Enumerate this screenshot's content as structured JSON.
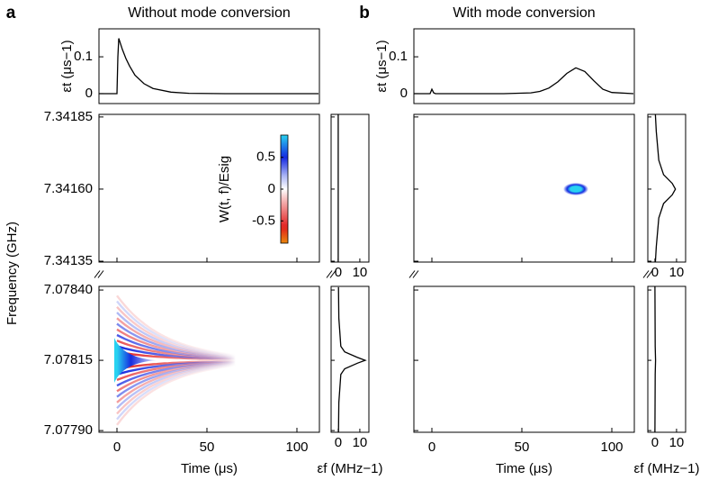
{
  "chart_data": [
    {
      "type": "line",
      "panel_label": "a",
      "title": "Without mode conversion",
      "ylabel": "εt (μs−1)",
      "x": [
        -10,
        0,
        0.5,
        1,
        2,
        3,
        5,
        7,
        10,
        15,
        20,
        30,
        40,
        60,
        80,
        100,
        112
      ],
      "values": [
        0,
        0,
        0.1,
        0.15,
        0.135,
        0.12,
        0.095,
        0.075,
        0.05,
        0.027,
        0.014,
        0.004,
        0.001,
        0,
        0,
        0,
        0
      ],
      "xlim": [
        -10,
        112.5
      ],
      "ylim": [
        -0.027,
        0.176
      ],
      "yticks": [
        0,
        0.1
      ],
      "color": "#000000"
    },
    {
      "type": "heatmap",
      "xlabel": "Time (μs)",
      "ylabel": "Frequency (GHz)",
      "xlim": [
        -10,
        112.5
      ],
      "xticks": [
        0,
        50,
        100
      ],
      "panels": [
        {
          "ylim": [
            7.341347,
            7.341859
          ],
          "yticks": [
            7.34185,
            {
              "value": 7.3416,
              "label": "7.34160"
            },
            7.34135
          ],
          "peaks": [],
          "ridges": []
        },
        {
          "ylim": [
            7.077894,
            7.078413
          ],
          "yticks": [
            {
              "value": 7.0784,
              "label": "7.07840"
            },
            7.07815,
            {
              "value": 7.0779,
              "label": "7.07790"
            }
          ],
          "peaks": [
            {
              "shape": "tail",
              "t": 0,
              "f": 7.07815,
              "value": 0.85,
              "t_width": 22,
              "f_width": 8e-05
            }
          ],
          "ridges": [
            {
              "f": 7.07818,
              "value": -0.6
            },
            {
              "f": 7.0782,
              "value": 0.5
            },
            {
              "f": 7.07822,
              "value": -0.45
            },
            {
              "f": 7.07824,
              "value": 0.4
            },
            {
              "f": 7.07826,
              "value": -0.35
            },
            {
              "f": 7.07828,
              "value": 0.3
            },
            {
              "f": 7.0783,
              "value": -0.25
            },
            {
              "f": 7.07832,
              "value": 0.2
            },
            {
              "f": 7.07834,
              "value": -0.15
            },
            {
              "f": 7.07836,
              "value": 0.12
            },
            {
              "f": 7.07838,
              "value": -0.1
            },
            {
              "f": 7.07812,
              "value": -0.6
            },
            {
              "f": 7.0781,
              "value": 0.5
            },
            {
              "f": 7.07808,
              "value": -0.45
            },
            {
              "f": 7.07806,
              "value": 0.4
            },
            {
              "f": 7.07804,
              "value": -0.35
            },
            {
              "f": 7.07802,
              "value": 0.3
            },
            {
              "f": 7.078,
              "value": -0.25
            },
            {
              "f": 7.07798,
              "value": 0.2
            },
            {
              "f": 7.07796,
              "value": -0.15
            },
            {
              "f": 7.07794,
              "value": 0.12
            },
            {
              "f": 7.07792,
              "value": -0.1
            }
          ]
        }
      ],
      "colorbar": {
        "label": "W(t, f)/Esig",
        "clim": [
          -0.85,
          0.85
        ],
        "ticks": [
          0.5,
          0,
          -0.5
        ]
      }
    },
    {
      "type": "marginal",
      "xlabel": "εf (MHz−1)",
      "xlim": [
        -3.3,
        14.2
      ],
      "xticks": [
        0,
        10
      ],
      "color": "#000000",
      "series": [
        {
          "f": [
            7.341347,
            7.341859
          ],
          "values": [
            0,
            0
          ]
        },
        {
          "f": [
            7.07789,
            7.078,
            7.0781,
            7.07812,
            7.07814,
            7.07815,
            7.07816,
            7.07818,
            7.0782,
            7.0783,
            7.07841
          ],
          "values": [
            0.1,
            0.3,
            1.2,
            3,
            9,
            12.5,
            9,
            3,
            1.2,
            0.3,
            0.1
          ]
        }
      ]
    },
    {
      "type": "line",
      "panel_label": "b",
      "title": "With mode conversion",
      "ylabel": "εt (μs−1)",
      "x": [
        -10,
        -1,
        0,
        1,
        2,
        20,
        40,
        55,
        60,
        65,
        70,
        75,
        80,
        85,
        90,
        95,
        100,
        112
      ],
      "values": [
        0,
        0,
        0.012,
        0.002,
        0,
        0,
        0,
        0.002,
        0.006,
        0.015,
        0.032,
        0.055,
        0.07,
        0.06,
        0.035,
        0.012,
        0.003,
        0
      ],
      "xlim": [
        -10,
        112.5
      ],
      "ylim": [
        -0.027,
        0.176
      ],
      "yticks": [
        0,
        0.1
      ],
      "color": "#000000"
    },
    {
      "type": "heatmap",
      "xlabel": "Time (μs)",
      "xlim": [
        -10,
        112.5
      ],
      "xticks": [
        0,
        50,
        100
      ],
      "panels": [
        {
          "ylim": [
            7.341347,
            7.341859
          ],
          "yticks": [
            7.34185,
            {
              "value": 7.3416,
              "label": "7.34160"
            },
            7.34135
          ],
          "peaks": [
            {
              "shape": "spot",
              "t": 80,
              "f": 7.3416,
              "value": 0.85,
              "t_width": 7,
              "f_width": 2.2e-05
            }
          ],
          "ridges": []
        },
        {
          "ylim": [
            7.077894,
            7.078413
          ],
          "yticks": [
            {
              "value": 7.0784,
              "label": "7.07840"
            },
            7.07815,
            {
              "value": 7.0779,
              "label": "7.07790"
            }
          ],
          "peaks": [],
          "ridges": []
        }
      ]
    },
    {
      "type": "marginal",
      "xlabel": "εf (MHz−1)",
      "xlim": [
        -3.3,
        14.2
      ],
      "xticks": [
        0,
        10
      ],
      "color": "#000000",
      "series": [
        {
          "f": [
            7.341347,
            7.3414,
            7.3415,
            7.34155,
            7.34158,
            7.3416,
            7.34162,
            7.34165,
            7.3417,
            7.3418,
            7.341859
          ],
          "values": [
            0.2,
            0.6,
            1.8,
            4,
            8,
            9.5,
            8,
            4,
            1.8,
            0.6,
            0.2
          ]
        },
        {
          "f": [
            7.077894,
            7.0781,
            7.07815,
            7.0782,
            7.078413
          ],
          "values": [
            0,
            0.1,
            0.3,
            0.1,
            0
          ]
        }
      ]
    }
  ]
}
